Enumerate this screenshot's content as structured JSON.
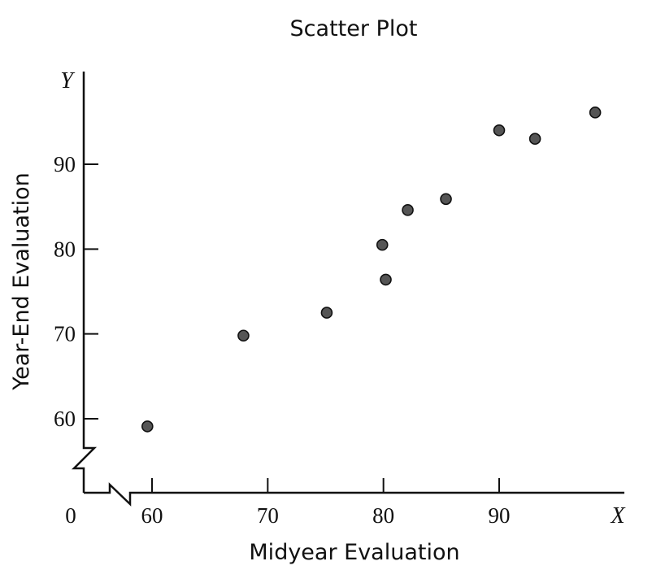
{
  "chart_data": {
    "type": "scatter",
    "title": "Scatter Plot",
    "xlabel": "Midyear Evaluation",
    "ylabel": "Year-End Evaluation",
    "x_var": "X",
    "y_var": "Y",
    "origin_label": "0",
    "xlim": [
      55,
      98
    ],
    "ylim": [
      55,
      96
    ],
    "x_ticks": [
      60,
      70,
      80,
      90
    ],
    "y_ticks": [
      60,
      70,
      80,
      90
    ],
    "x_tick_labels": [
      "60",
      "70",
      "80",
      "90"
    ],
    "y_tick_labels": [
      "60",
      "70",
      "80",
      "90"
    ],
    "axis_breaks": true,
    "grid": false,
    "points": [
      {
        "x": 59.6,
        "y": 59.1
      },
      {
        "x": 67.9,
        "y": 69.8
      },
      {
        "x": 75.1,
        "y": 72.5
      },
      {
        "x": 79.9,
        "y": 80.5
      },
      {
        "x": 80.2,
        "y": 76.4
      },
      {
        "x": 82.1,
        "y": 84.6
      },
      {
        "x": 85.4,
        "y": 85.9
      },
      {
        "x": 90.0,
        "y": 94.0
      },
      {
        "x": 93.1,
        "y": 93.0
      },
      {
        "x": 98.3,
        "y": 96.1
      }
    ]
  }
}
